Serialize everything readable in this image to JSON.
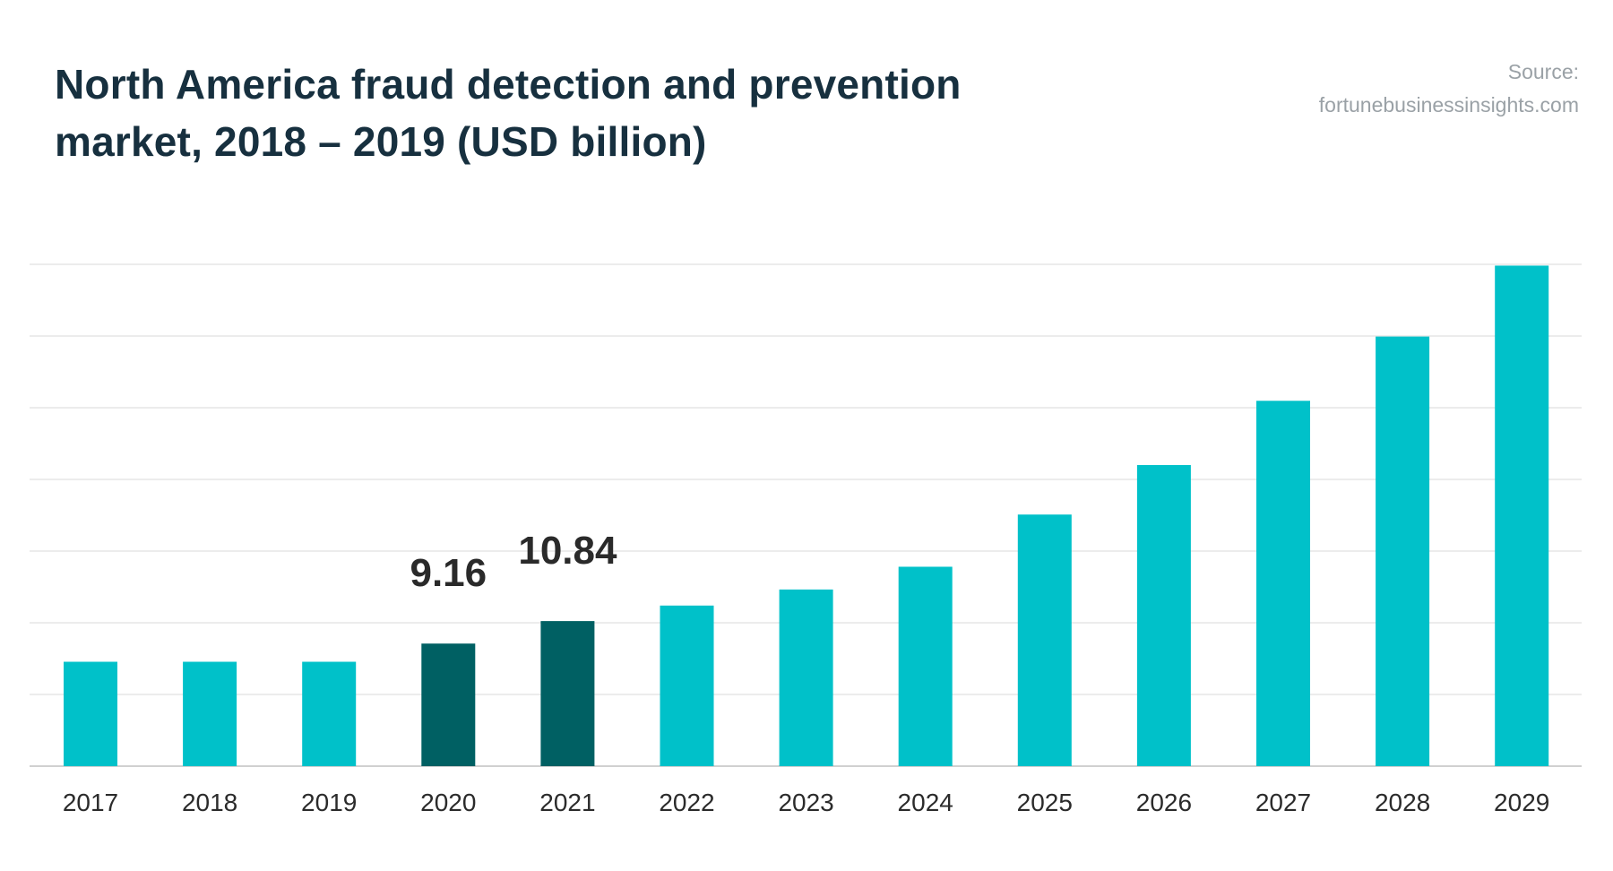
{
  "title_lines": [
    "North America fraud detection and prevention",
    "market, 2018 – 2019 (USD billion)"
  ],
  "source_lines": [
    "Source:",
    "fortunebusinessinsights.com"
  ],
  "colors": {
    "bar": "#00c1c9",
    "highlight": "#006063",
    "grid": "#e6e6e6",
    "axis": "#d0d0d0"
  },
  "chart_data": {
    "type": "bar",
    "title": "North America fraud detection and prevention market, 2018 – 2019 (USD billion)",
    "xlabel": "",
    "ylabel": "",
    "categories": [
      "2017",
      "2018",
      "2019",
      "2020",
      "2021",
      "2022",
      "2023",
      "2024",
      "2025",
      "2026",
      "2027",
      "2028",
      "2029"
    ],
    "values": [
      7.8,
      7.8,
      7.8,
      9.16,
      10.84,
      12.0,
      13.2,
      14.9,
      18.8,
      22.5,
      27.3,
      32.1,
      37.4
    ],
    "highlighted": [
      "2020",
      "2021"
    ],
    "data_labels": {
      "2020": "9.16",
      "2021": "10.84"
    },
    "ylim": [
      0,
      38.5
    ],
    "grid": true,
    "legend": "none"
  }
}
